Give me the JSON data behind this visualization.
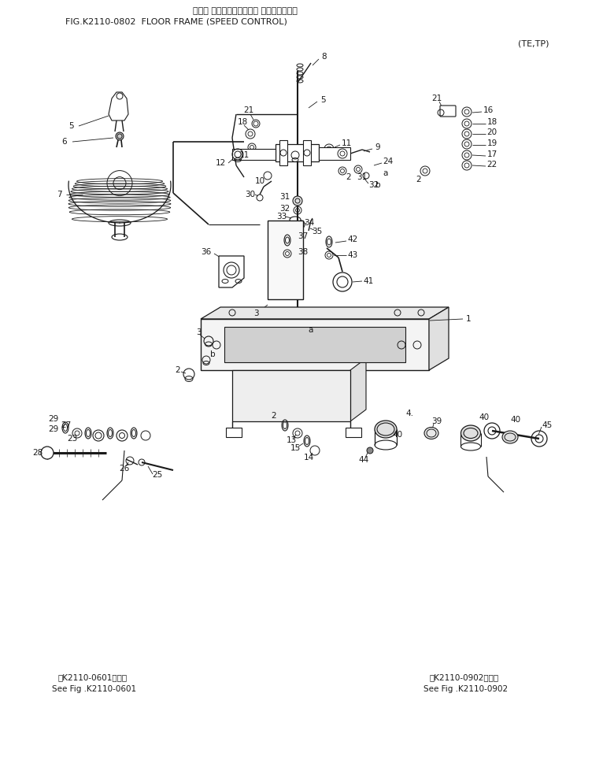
{
  "title_jp": "フロア フレーム（スピード コントロール）",
  "title_en": "FIG.K2110-0802  FLOOR FRAME (SPEED CONTROL)",
  "subtitle": "(TE,TP)",
  "ref1_jp": "第K2110-0601図参照",
  "ref1_en": "See Fig .K2110-0601",
  "ref2_jp": "第K2110-0902図参照",
  "ref2_en": "See Fig .K2110-0902",
  "bg_color": "#ffffff",
  "line_color": "#1a1a1a",
  "text_color": "#1a1a1a",
  "fig_width": 7.8,
  "fig_height": 9.65,
  "dpi": 100
}
